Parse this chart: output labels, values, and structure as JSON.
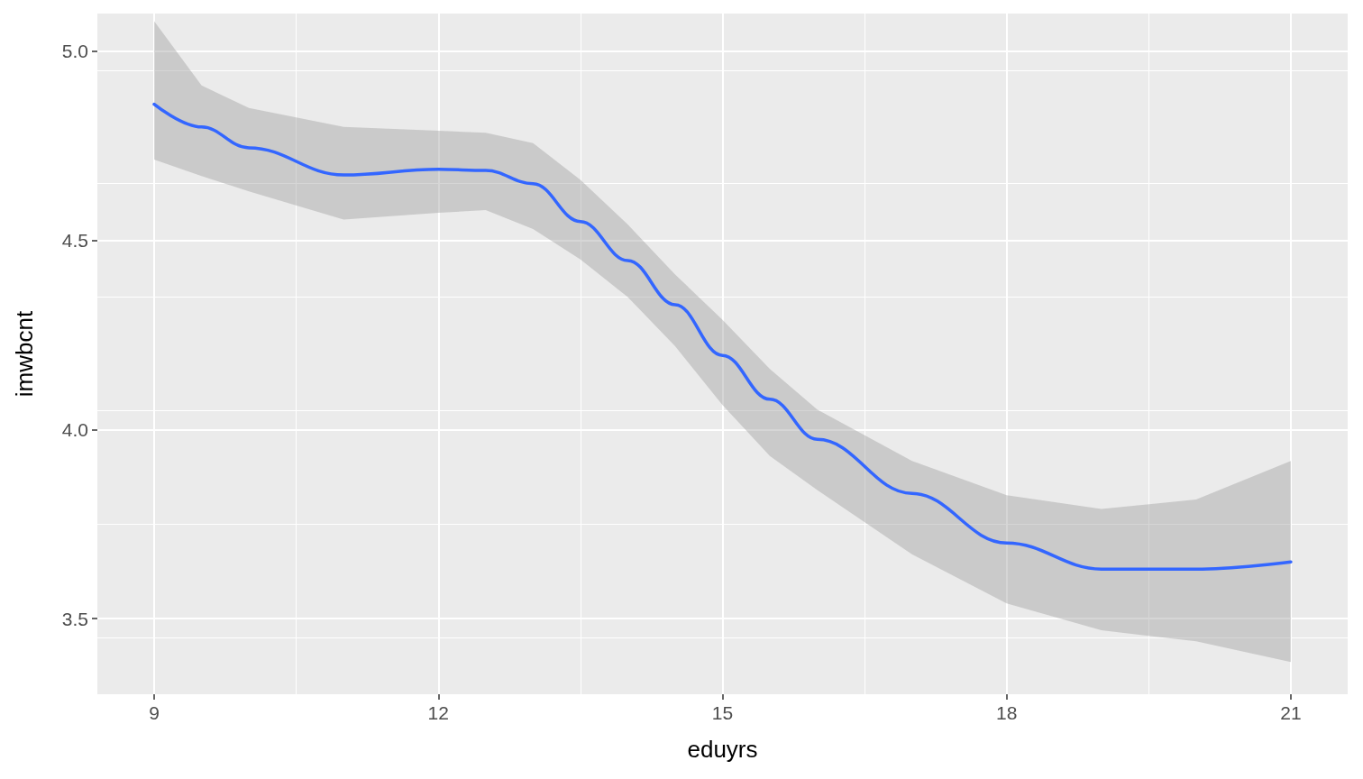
{
  "chart_data": {
    "type": "line",
    "xlabel": "eduyrs",
    "ylabel": "imwbcnt",
    "x": [
      9,
      9.5,
      10,
      11,
      12,
      12.5,
      13,
      13.5,
      14,
      14.5,
      15,
      15.5,
      16,
      17,
      18,
      19,
      20,
      21
    ],
    "series": [
      {
        "color": "#3366ff",
        "values": [
          4.86,
          4.8,
          4.745,
          4.673,
          4.688,
          4.685,
          4.65,
          4.55,
          4.447,
          4.33,
          4.196,
          4.08,
          3.974,
          3.831,
          3.7,
          3.631,
          3.631,
          3.65
        ],
        "lower": [
          4.714,
          4.67,
          4.63,
          4.555,
          4.573,
          4.58,
          4.53,
          4.45,
          4.35,
          4.22,
          4.065,
          3.93,
          3.84,
          3.67,
          3.54,
          3.469,
          3.44,
          3.385
        ],
        "upper": [
          5.08,
          4.91,
          4.85,
          4.8,
          4.79,
          4.785,
          4.757,
          4.66,
          4.542,
          4.41,
          4.29,
          4.16,
          4.053,
          3.917,
          3.826,
          3.79,
          3.815,
          3.917
        ]
      }
    ],
    "xlim": [
      8.4,
      21.6
    ],
    "xticks": [
      9,
      12,
      15,
      18,
      21
    ],
    "ylim": [
      3.3,
      5.1
    ],
    "yticks": [
      3.5,
      {
        "value": 4,
        "label": "4.0"
      },
      4.5,
      {
        "value": 5,
        "label": "5.0"
      }
    ],
    "grid": true,
    "marker": "none",
    "line_style": "solid"
  }
}
